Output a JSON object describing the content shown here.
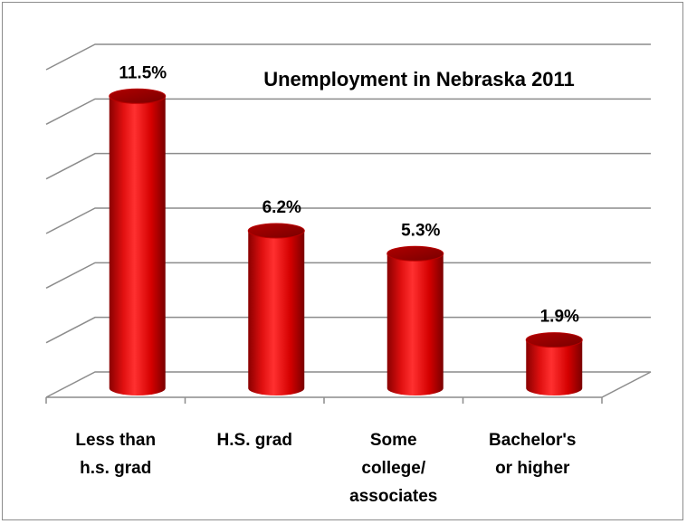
{
  "chart_data": {
    "type": "bar",
    "style": "3d-cylinder",
    "title": "Unemployment in Nebraska 2011",
    "categories": [
      [
        "Less than",
        "h.s. grad"
      ],
      [
        "H.S. grad"
      ],
      [
        "Some",
        "college/",
        "associates"
      ],
      [
        "Bachelor's",
        "or higher"
      ]
    ],
    "values": [
      11.5,
      6.2,
      5.3,
      1.9
    ],
    "data_labels": [
      "11.5%",
      "6.2%",
      "5.3%",
      "1.9%"
    ],
    "ylim": [
      0,
      12
    ],
    "grid": true,
    "bar_color": "#cc0000",
    "bar_color_light": "#ff3b3b",
    "bar_color_dark": "#8a0000"
  }
}
